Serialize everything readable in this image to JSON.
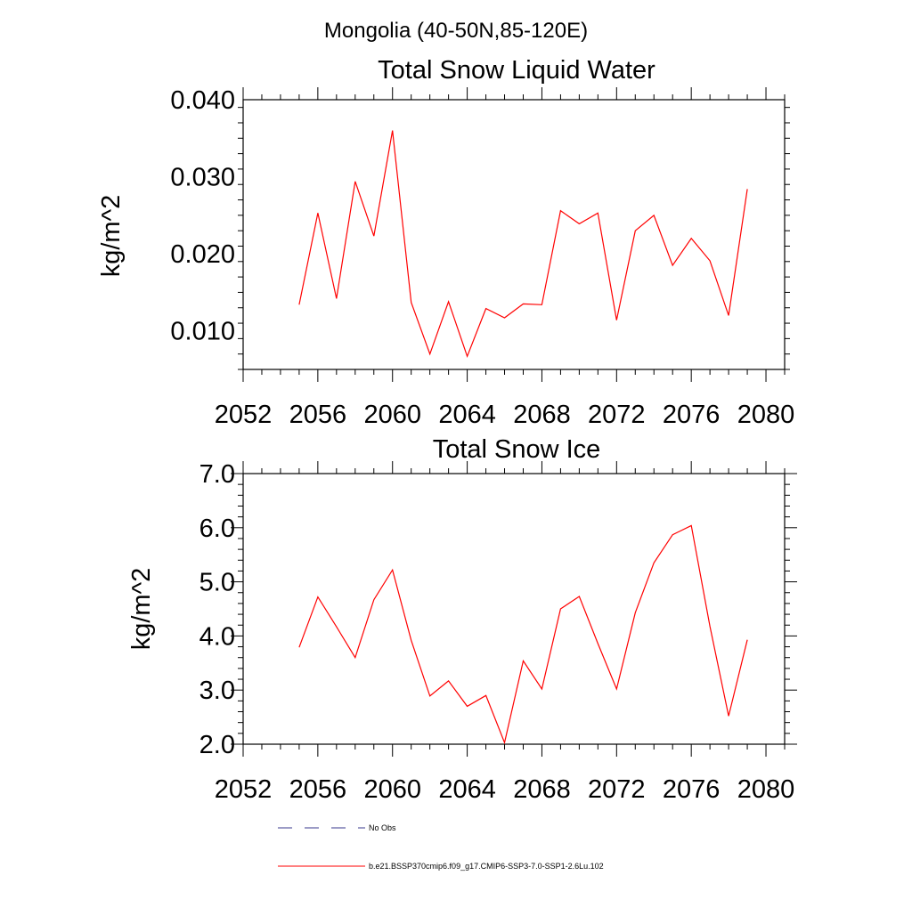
{
  "header": {
    "region_title": "Mongolia (40-50N,85-120E)"
  },
  "legend": {
    "entries": [
      {
        "label": "No Obs",
        "style": "dashed",
        "color": "#3a3a8c"
      },
      {
        "label": "b.e21.BSSP370cmip6.f09_g17.CMIP6-SSP3-7.0-SSP1-2.6Lu.102",
        "style": "solid",
        "color": "#ff0000"
      }
    ]
  },
  "chart_data": [
    {
      "type": "line",
      "title": "Total Snow Liquid Water",
      "xlabel": "",
      "ylabel": "kg/m^2",
      "xlim": [
        2052,
        2081
      ],
      "ylim": [
        0.005,
        0.04
      ],
      "xticks": [
        2052,
        2056,
        2060,
        2064,
        2068,
        2072,
        2076,
        2080
      ],
      "xtick_labels": [
        "2052",
        "2056",
        "2060",
        "2064",
        "2068",
        "2072",
        "2076",
        "2080"
      ],
      "yticks": [
        0.01,
        0.02,
        0.03,
        0.04
      ],
      "ytick_labels": [
        "0.010",
        "0.020",
        "0.030",
        "0.040"
      ],
      "grid": false,
      "series": [
        {
          "color": "#ff0000",
          "x": [
            2055,
            2056,
            2057,
            2058,
            2059,
            2060,
            2061,
            2062,
            2063,
            2064,
            2065,
            2066,
            2067,
            2068,
            2069,
            2070,
            2071,
            2072,
            2073,
            2074,
            2075,
            2076,
            2077,
            2078,
            2079
          ],
          "y": [
            0.0134,
            0.0253,
            0.0142,
            0.0294,
            0.0223,
            0.036,
            0.0137,
            0.007,
            0.0138,
            0.0067,
            0.0129,
            0.0117,
            0.0135,
            0.0134,
            0.0256,
            0.0239,
            0.0253,
            0.0114,
            0.023,
            0.025,
            0.0185,
            0.022,
            0.0191,
            0.012,
            0.0284
          ]
        }
      ]
    },
    {
      "type": "line",
      "title": "Total Snow Ice",
      "xlabel": "",
      "ylabel": "kg/m^2",
      "xlim": [
        2052,
        2081
      ],
      "ylim": [
        2.0,
        7.0
      ],
      "xticks": [
        2052,
        2056,
        2060,
        2064,
        2068,
        2072,
        2076,
        2080
      ],
      "xtick_labels": [
        "2052",
        "2056",
        "2060",
        "2064",
        "2068",
        "2072",
        "2076",
        "2080"
      ],
      "yticks": [
        2.0,
        3.0,
        4.0,
        5.0,
        6.0,
        7.0
      ],
      "ytick_labels": [
        "2.0",
        "3.0",
        "4.0",
        "5.0",
        "6.0",
        "7.0"
      ],
      "grid": false,
      "series": [
        {
          "color": "#ff0000",
          "x": [
            2055,
            2056,
            2057,
            2058,
            2059,
            2060,
            2061,
            2062,
            2063,
            2064,
            2065,
            2066,
            2067,
            2068,
            2069,
            2070,
            2071,
            2072,
            2073,
            2074,
            2075,
            2076,
            2077,
            2078,
            2079
          ],
          "y": [
            3.79,
            4.72,
            4.17,
            3.6,
            4.67,
            5.22,
            3.92,
            2.89,
            3.17,
            2.7,
            2.9,
            2.03,
            3.54,
            3.02,
            4.5,
            4.73,
            3.86,
            3.02,
            4.43,
            5.35,
            5.87,
            6.04,
            4.18,
            2.52,
            3.93
          ]
        }
      ]
    }
  ]
}
